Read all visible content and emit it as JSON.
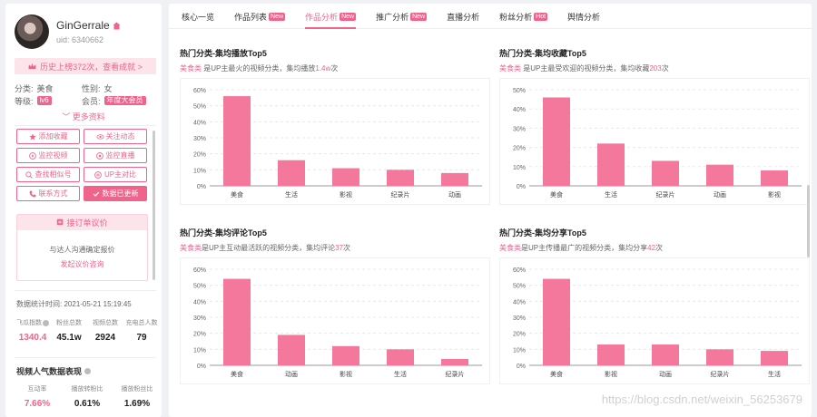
{
  "profile": {
    "name": "GinGerrale",
    "uid": "uid: 6340662",
    "rank_banner": "历史上榜372次，查看成就 >",
    "category_label": "分类:",
    "category_value": "美食",
    "gender_label": "性别:",
    "gender_value": "女",
    "level_label": "等级:",
    "level_value": "lv6",
    "member_label": "会员:",
    "member_value": "年度大会员",
    "more_info": "更多资料"
  },
  "actions": [
    {
      "label": "添加收藏",
      "icon": "star-icon",
      "filled": false
    },
    {
      "label": "关注动态",
      "icon": "eye-icon",
      "filled": false
    },
    {
      "label": "监控视频",
      "icon": "video-monitor-icon",
      "filled": false
    },
    {
      "label": "监控直播",
      "icon": "live-monitor-icon",
      "filled": false
    },
    {
      "label": "查找相似号",
      "icon": "search-similar-icon",
      "filled": false
    },
    {
      "label": "UP主对比",
      "icon": "compare-icon",
      "filled": false
    },
    {
      "label": "联系方式",
      "icon": "phone-icon",
      "filled": false
    },
    {
      "label": "数据已更新",
      "icon": "check-icon",
      "filled": true
    }
  ],
  "order": {
    "title": "接订单议价",
    "text": "与达人沟通确定报价",
    "link": "发起议价咨询"
  },
  "stats": {
    "time_label": "数据统计时间:",
    "time_value": "2021-05-21 15:19:45",
    "items": [
      {
        "label": "飞瓜指数",
        "value": "1340.4",
        "pink": true,
        "help": true
      },
      {
        "label": "粉丝总数",
        "value": "45.1w",
        "pink": false,
        "help": false
      },
      {
        "label": "视频总数",
        "value": "2924",
        "pink": false,
        "help": false
      },
      {
        "label": "充电总人数",
        "value": "79",
        "pink": false,
        "help": false
      }
    ]
  },
  "performance": {
    "title": "视频人气数据表现",
    "items": [
      {
        "label": "互动率",
        "value": "7.66%",
        "pink": true
      },
      {
        "label": "播放转粉比",
        "value": "0.61%",
        "pink": false
      },
      {
        "label": "播放粉丝比",
        "value": "1.69%",
        "pink": false
      }
    ]
  },
  "tabs": [
    {
      "label": "核心一览",
      "badge": "",
      "active": false
    },
    {
      "label": "作品列表",
      "badge": "New",
      "active": false
    },
    {
      "label": "作品分析",
      "badge": "New",
      "active": true
    },
    {
      "label": "推广分析",
      "badge": "New",
      "active": false
    },
    {
      "label": "直播分析",
      "badge": "",
      "active": false
    },
    {
      "label": "粉丝分析",
      "badge": "Hot",
      "active": false
    },
    {
      "label": "舆情分析",
      "badge": "",
      "active": false
    }
  ],
  "colors": {
    "accent": "#f0648c",
    "bar": "#f4789b"
  },
  "charts": [
    {
      "title": "热门分类-集均播放Top5",
      "sub_pre": "",
      "sub_cat": "美食类",
      "sub_mid": " 是UP主最火的视频分类，集均播放",
      "sub_val": "1.4w",
      "sub_post": "次",
      "chart_data": {
        "type": "bar",
        "categories": [
          "美食",
          "生活",
          "影视",
          "纪录片",
          "动画"
        ],
        "values": [
          56,
          16,
          11,
          10,
          8
        ],
        "ylim": [
          0,
          60
        ],
        "yticks": [
          0,
          10,
          20,
          30,
          40,
          50,
          60
        ],
        "unit": "%"
      }
    },
    {
      "title": "热门分类-集均收藏Top5",
      "sub_pre": "",
      "sub_cat": "美食类",
      "sub_mid": " 是UP主最受欢迎的视频分类，集均收藏",
      "sub_val": "203",
      "sub_post": "次",
      "chart_data": {
        "type": "bar",
        "categories": [
          "美食",
          "生活",
          "纪录片",
          "动画",
          "影视"
        ],
        "values": [
          46,
          22,
          13,
          11,
          8
        ],
        "ylim": [
          0,
          50
        ],
        "yticks": [
          0,
          10,
          20,
          30,
          40,
          50
        ],
        "unit": "%"
      }
    },
    {
      "title": "热门分类-集均评论Top5",
      "sub_pre": "",
      "sub_cat": "美食类",
      "sub_mid": "是UP主互动最活跃的视频分类，集均评论",
      "sub_val": "37",
      "sub_post": "次",
      "chart_data": {
        "type": "bar",
        "categories": [
          "美食",
          "动画",
          "影视",
          "生活",
          "纪录片"
        ],
        "values": [
          54,
          19,
          12,
          10,
          4
        ],
        "ylim": [
          0,
          60
        ],
        "yticks": [
          0,
          10,
          20,
          30,
          40,
          50,
          60
        ],
        "unit": "%"
      }
    },
    {
      "title": "热门分类-集均分享Top5",
      "sub_pre": "",
      "sub_cat": "美食类",
      "sub_mid": "是UP主传播最广的视频分类，集均分享",
      "sub_val": "42",
      "sub_post": "次",
      "chart_data": {
        "type": "bar",
        "categories": [
          "美食",
          "影视",
          "动画",
          "纪录片",
          "生活"
        ],
        "values": [
          54,
          13,
          13,
          10,
          9
        ],
        "ylim": [
          0,
          60
        ],
        "yticks": [
          0,
          10,
          20,
          30,
          40,
          50,
          60
        ],
        "unit": "%"
      }
    }
  ],
  "watermark": "https://blog.csdn.net/weixin_56253679"
}
